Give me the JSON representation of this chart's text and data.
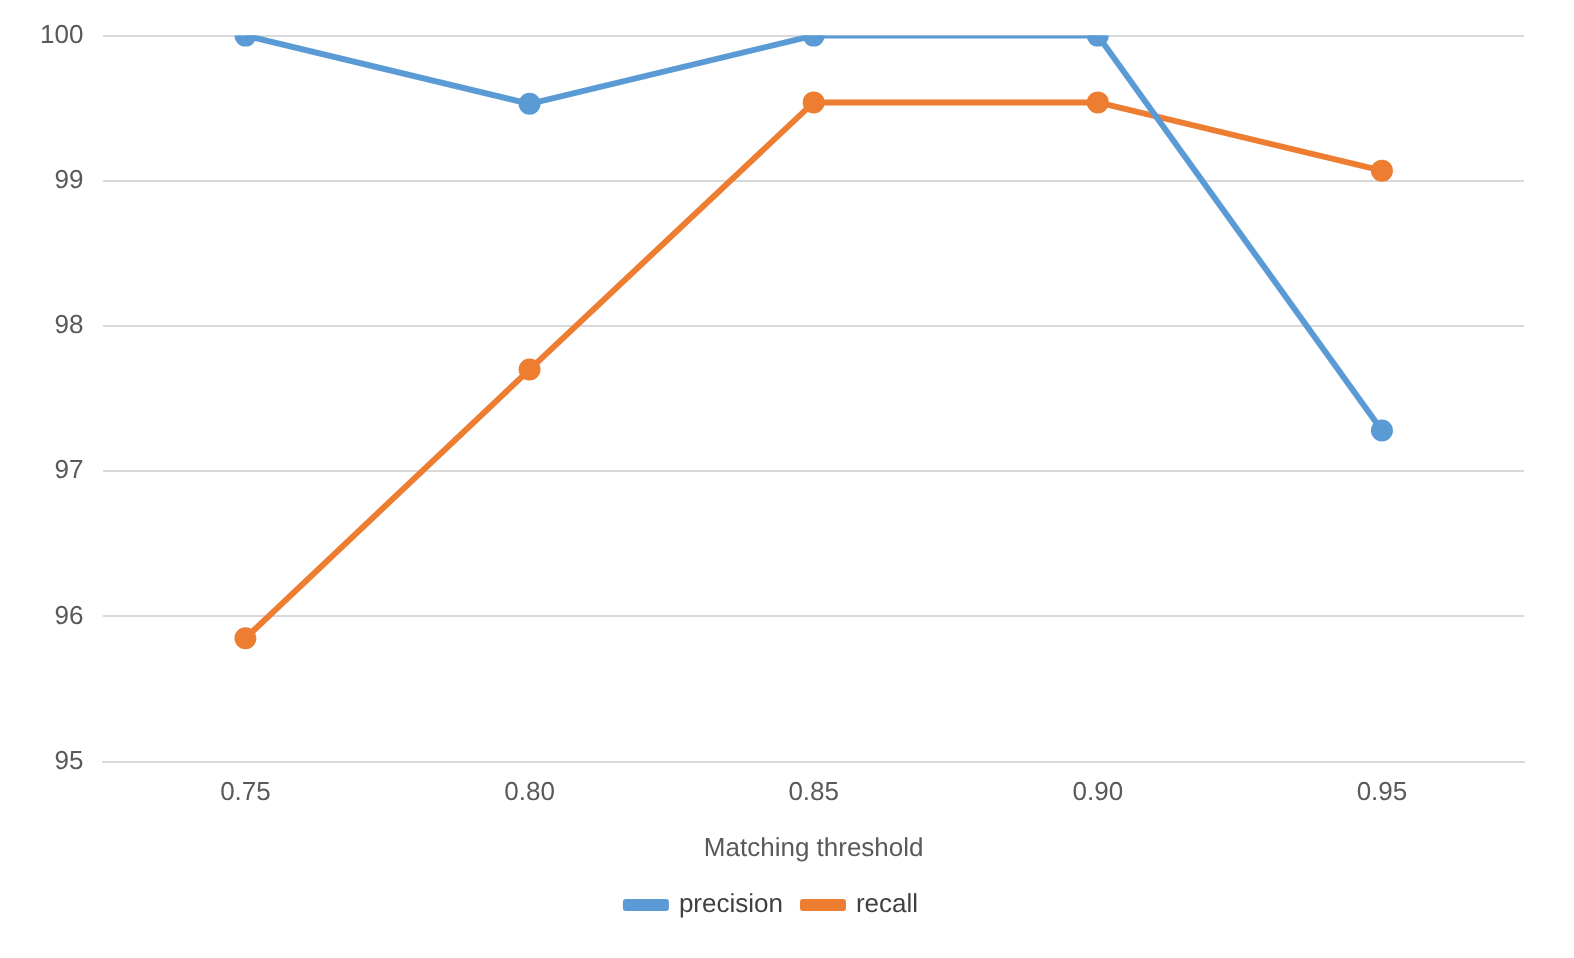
{
  "chart_data": {
    "type": "line",
    "xlabel": "Matching threshold",
    "categories": [
      "0.75",
      "0.80",
      "0.85",
      "0.90",
      "0.95"
    ],
    "series": [
      {
        "name": "precision",
        "color": "#5b9bd5",
        "values": [
          100,
          99.53,
          100,
          100,
          97.28
        ]
      },
      {
        "name": "recall",
        "color": "#ed7d31",
        "values": [
          95.85,
          97.7,
          99.54,
          99.54,
          99.07
        ]
      }
    ],
    "ylim": [
      95,
      100
    ],
    "yticks": [
      95,
      96,
      97,
      98,
      99,
      100
    ],
    "grid": "y",
    "legend": "bottom",
    "marker": "circle",
    "line_style": "solid"
  }
}
